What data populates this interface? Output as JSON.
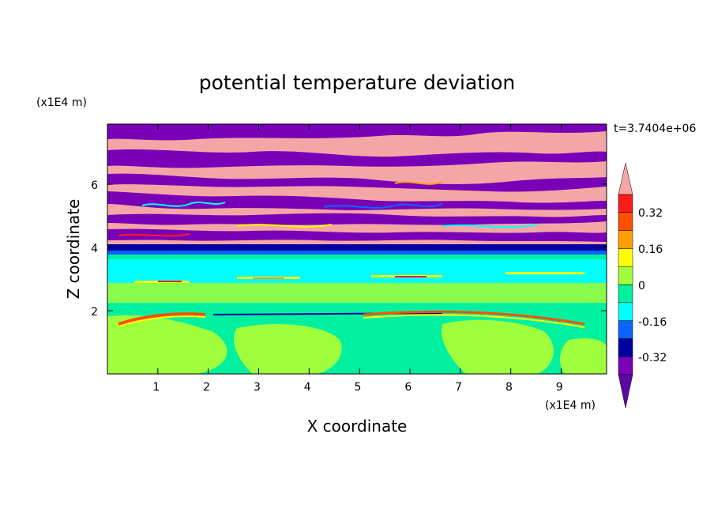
{
  "chart_data": {
    "type": "heatmap",
    "title": "potential temperature deviation",
    "xlabel": "X coordinate",
    "ylabel": "Z coordinate",
    "x_unit": "(x1E4 m)",
    "y_unit": "(x1E4 m)",
    "time_label": "t=3.7404e+06",
    "xlim": [
      0,
      9.9
    ],
    "ylim": [
      0,
      7.9
    ],
    "x_ticks": [
      "1",
      "2",
      "3",
      "4",
      "5",
      "6",
      "7",
      "8",
      "9"
    ],
    "y_ticks": [
      "2",
      "4",
      "6"
    ],
    "colorbar": {
      "labels": [
        "0.32",
        "0.16",
        "0",
        "-0.16",
        "-0.32"
      ],
      "levels": [
        {
          "color": "#5a0aa0",
          "range": "< -0.40"
        },
        {
          "color": "#7a00b8",
          "range": "-0.40 to -0.32"
        },
        {
          "color": "#0000a0",
          "range": "-0.32 to -0.24"
        },
        {
          "color": "#0a64ff",
          "range": "-0.24 to -0.16"
        },
        {
          "color": "#00ffff",
          "range": "-0.16 to -0.08"
        },
        {
          "color": "#00f0a0",
          "range": "-0.08 to 0"
        },
        {
          "color": "#a0ff3c",
          "range": "0 to 0.08"
        },
        {
          "color": "#ffff00",
          "range": "0.08 to 0.16"
        },
        {
          "color": "#ffa000",
          "range": "0.16 to 0.24"
        },
        {
          "color": "#ff5000",
          "range": "0.24 to 0.32"
        },
        {
          "color": "#ff1a1a",
          "range": "0.32 to 0.40"
        },
        {
          "color": "#f4a6a6",
          "range": "> 0.40"
        }
      ]
    },
    "field_summary": [
      {
        "z_range": [
          4.1,
          7.9
        ],
        "pattern": "alternating bands",
        "colors": [
          "#f4a6a6",
          "#7a00b8"
        ]
      },
      {
        "z_range": [
          3.9,
          4.1
        ],
        "pattern": "negative layer",
        "colors": [
          "#0000a0",
          "#0a64ff"
        ]
      },
      {
        "z_range": [
          3.2,
          3.9
        ],
        "pattern": "near-zero negative",
        "colors": [
          "#00ffff",
          "#00f0a0"
        ]
      },
      {
        "z_range": [
          0,
          3.2
        ],
        "pattern": "near-zero mixed",
        "colors": [
          "#00f0a0",
          "#a0ff3c"
        ]
      }
    ]
  }
}
